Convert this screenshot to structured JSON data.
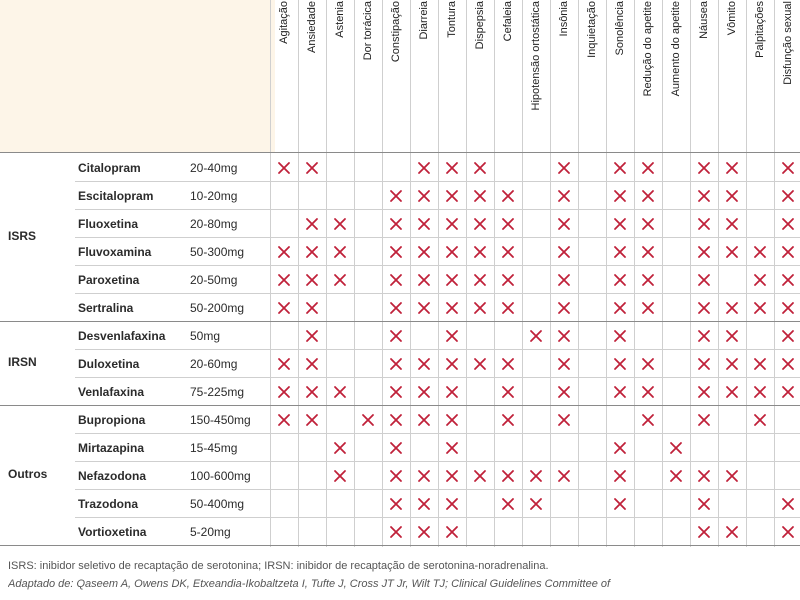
{
  "columns": [
    "Agitação",
    "Ansiedade",
    "Astenia",
    "Dor torácica",
    "Constipação",
    "Diarreia",
    "Tontura",
    "Dispepsia",
    "Cefaleia",
    "Hipotensão ortostática",
    "Insônia",
    "Inquietação",
    "Sonolência",
    "Redução do apetite",
    "Aumento do apetite",
    "Náusea",
    "Vômito",
    "Palpitações",
    "Disfunção sexual"
  ],
  "groups": [
    {
      "label": "ISRS",
      "rows": [
        0,
        5
      ]
    },
    {
      "label": "IRSN",
      "rows": [
        6,
        8
      ]
    },
    {
      "label": "Outros",
      "rows": [
        9,
        13
      ]
    }
  ],
  "rows": [
    {
      "name": "Citalopram",
      "dose": "20-40mg",
      "marks": [
        0,
        1,
        5,
        6,
        7,
        10,
        12,
        13,
        15,
        16,
        18
      ]
    },
    {
      "name": "Escitalopram",
      "dose": "10-20mg",
      "marks": [
        4,
        5,
        6,
        7,
        8,
        10,
        12,
        13,
        15,
        16,
        18
      ]
    },
    {
      "name": "Fluoxetina",
      "dose": "20-80mg",
      "marks": [
        1,
        2,
        4,
        5,
        6,
        7,
        8,
        10,
        12,
        13,
        15,
        16,
        18
      ]
    },
    {
      "name": "Fluvoxamina",
      "dose": "50-300mg",
      "marks": [
        0,
        1,
        2,
        4,
        5,
        6,
        7,
        8,
        10,
        12,
        13,
        15,
        16,
        17,
        18
      ]
    },
    {
      "name": "Paroxetina",
      "dose": "20-50mg",
      "marks": [
        0,
        1,
        2,
        4,
        5,
        6,
        7,
        8,
        10,
        12,
        13,
        15,
        17,
        18
      ]
    },
    {
      "name": "Sertralina",
      "dose": "50-200mg",
      "marks": [
        0,
        1,
        4,
        5,
        6,
        7,
        8,
        10,
        12,
        13,
        15,
        16,
        17,
        18
      ]
    },
    {
      "name": "Desvenlafaxina",
      "dose": "50mg",
      "marks": [
        1,
        4,
        6,
        9,
        10,
        12,
        15,
        16,
        18
      ]
    },
    {
      "name": "Duloxetina",
      "dose": "20-60mg",
      "marks": [
        0,
        1,
        4,
        5,
        6,
        7,
        8,
        10,
        12,
        13,
        15,
        16,
        17,
        18
      ]
    },
    {
      "name": "Venlafaxina",
      "dose": "75-225mg",
      "marks": [
        0,
        1,
        2,
        4,
        5,
        6,
        8,
        10,
        12,
        13,
        15,
        16,
        17,
        18
      ]
    },
    {
      "name": "Bupropiona",
      "dose": "150-450mg",
      "marks": [
        0,
        1,
        3,
        4,
        5,
        6,
        8,
        10,
        13,
        15,
        17
      ]
    },
    {
      "name": "Mirtazapina",
      "dose": "15-45mg",
      "marks": [
        2,
        4,
        6,
        12,
        14
      ]
    },
    {
      "name": "Nefazodona",
      "dose": "100-600mg",
      "marks": [
        2,
        4,
        5,
        6,
        7,
        8,
        9,
        10,
        12,
        14,
        15,
        16
      ]
    },
    {
      "name": "Trazodona",
      "dose": "50-400mg",
      "marks": [
        4,
        5,
        6,
        8,
        9,
        12,
        15,
        18
      ]
    },
    {
      "name": "Vortioxetina",
      "dose": "5-20mg",
      "marks": [
        4,
        5,
        6,
        15,
        16,
        18
      ]
    }
  ],
  "footnotes": {
    "line1": "ISRS: inibidor seletivo de recaptação de serotonina; IRSN: inibidor de recaptação de serotonina-noradrenalina.",
    "line2": "Adaptado de: Qaseem A, Owens DK, Etxeandia-Ikobaltzeta I, Tufte J, Cross JT Jr, Wilt TJ; Clinical Guidelines Committee of"
  },
  "colors": {
    "mark": "#c0213a",
    "header_fill": "#fdf5e8"
  }
}
